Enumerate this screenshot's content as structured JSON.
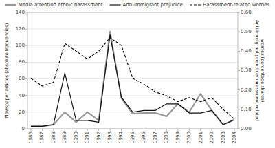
{
  "chart_data": {
    "type": "line",
    "x": [
      1986,
      1987,
      1988,
      1989,
      1990,
      1991,
      1992,
      1993,
      1994,
      1995,
      1996,
      1997,
      1998,
      1999,
      2000,
      2001,
      2002,
      2003,
      2004
    ],
    "xlim": [
      1985.7,
      2004.3
    ],
    "xticks": [
      1986,
      1987,
      1988,
      1989,
      1990,
      1991,
      1992,
      1993,
      1994,
      1995,
      1996,
      1997,
      1998,
      1999,
      2000,
      2001,
      2002,
      2003,
      2004
    ],
    "ylim": [
      0,
      140
    ],
    "yticks": [
      0,
      20,
      40,
      60,
      80,
      100,
      120,
      140
    ],
    "y2lim": [
      0.0,
      0.6
    ],
    "y2ticks": [
      {
        "value": 0.0,
        "label": "0.00"
      },
      {
        "value": 0.1,
        "label": "0.10"
      },
      {
        "value": 0.2,
        "label": "0.20"
      },
      {
        "value": 0.3,
        "label": "0.30"
      },
      {
        "value": 0.4,
        "label": "0.40"
      },
      {
        "value": 0.5,
        "label": "0.50"
      },
      {
        "value": 0.6,
        "label": "0.60"
      }
    ],
    "ylabel": "Newspaper articles (absolute frequencies)",
    "y2label": "Anti-immigrant prejudice/harassment related\nworries (percentage shares)",
    "grid": true,
    "legend": "top",
    "series": [
      {
        "name": "Media attention ethnic harassment",
        "color": "#999999",
        "line_style": "solid",
        "values": [
          3,
          3,
          5,
          20,
          8,
          20,
          10,
          117,
          37,
          18,
          19,
          19,
          15,
          30,
          20,
          42,
          22,
          5,
          11
        ]
      },
      {
        "name": "Anti-immigrant prejudice",
        "color": "#111111",
        "line_style": "solid",
        "values": [
          3,
          3,
          5,
          67,
          10,
          10,
          8,
          113,
          38,
          20,
          22,
          22,
          30,
          30,
          19,
          19,
          22,
          5,
          11
        ]
      },
      {
        "name": "Harassment-related worries",
        "color": "#111111",
        "line_style": "dashed",
        "axis": "y2",
        "values": [
          0.26,
          0.22,
          0.24,
          0.44,
          0.4,
          0.36,
          0.4,
          0.47,
          0.43,
          0.26,
          0.23,
          0.19,
          0.17,
          0.14,
          0.16,
          0.14,
          0.16,
          0.1,
          0.05
        ]
      }
    ]
  }
}
